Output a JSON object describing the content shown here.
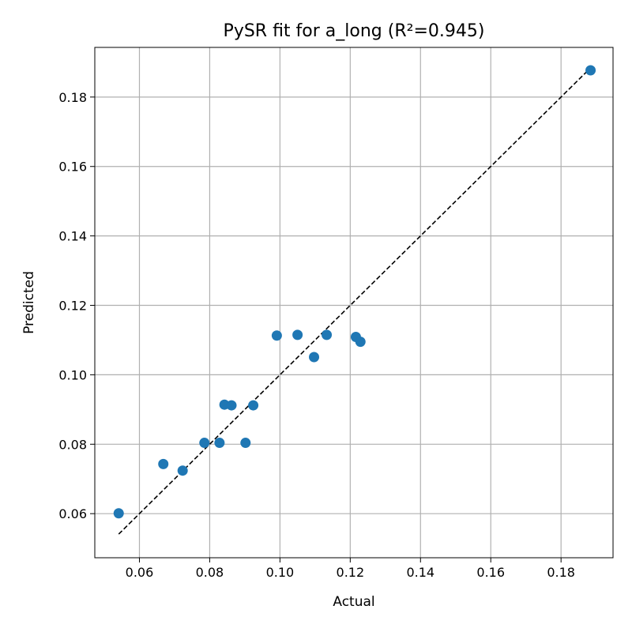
{
  "chart_data": {
    "type": "scatter",
    "title": "PySR fit for a_long (R²=0.945)",
    "xlabel": "Actual",
    "ylabel": "Predicted",
    "xlim": [
      0.0473,
      0.1948
    ],
    "ylim": [
      0.0473,
      0.1943
    ],
    "xticks": [
      0.06,
      0.08,
      0.1,
      0.12,
      0.14,
      0.16,
      0.18
    ],
    "yticks": [
      0.06,
      0.08,
      0.1,
      0.12,
      0.14,
      0.16,
      0.18
    ],
    "xtick_labels": [
      "0.06",
      "0.08",
      "0.10",
      "0.12",
      "0.14",
      "0.16",
      "0.18"
    ],
    "ytick_labels": [
      "0.06",
      "0.08",
      "0.10",
      "0.12",
      "0.14",
      "0.16",
      "0.18"
    ],
    "grid": true,
    "point_color": "#1f77b4",
    "reference_line": {
      "style": "dashed",
      "color": "#000000",
      "from": [
        0.0541,
        0.0541
      ],
      "to": [
        0.1884,
        0.1884
      ]
    },
    "points": [
      {
        "x": 0.0541,
        "y": 0.0601
      },
      {
        "x": 0.0668,
        "y": 0.0743
      },
      {
        "x": 0.0723,
        "y": 0.0724
      },
      {
        "x": 0.0785,
        "y": 0.0804
      },
      {
        "x": 0.0828,
        "y": 0.0804
      },
      {
        "x": 0.0842,
        "y": 0.0914
      },
      {
        "x": 0.0862,
        "y": 0.0912
      },
      {
        "x": 0.0902,
        "y": 0.0804
      },
      {
        "x": 0.0924,
        "y": 0.0912
      },
      {
        "x": 0.0991,
        "y": 0.1113
      },
      {
        "x": 0.105,
        "y": 0.1115
      },
      {
        "x": 0.1097,
        "y": 0.1051
      },
      {
        "x": 0.1133,
        "y": 0.1115
      },
      {
        "x": 0.1216,
        "y": 0.1109
      },
      {
        "x": 0.1229,
        "y": 0.1095
      },
      {
        "x": 0.1884,
        "y": 0.1877
      }
    ]
  }
}
